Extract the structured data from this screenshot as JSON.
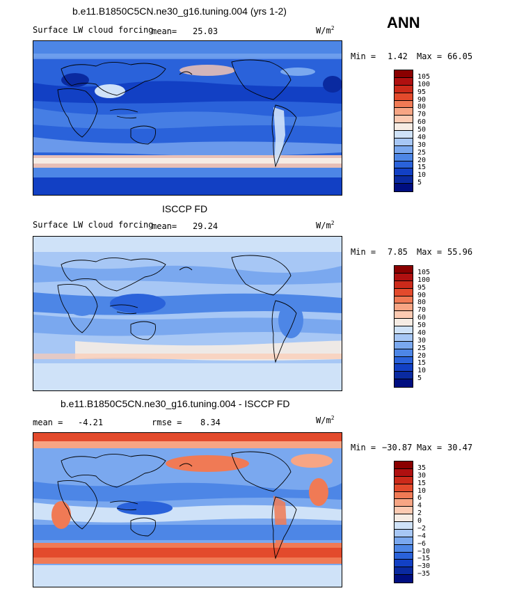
{
  "header": {
    "run_title": "b.e11.B1850C5CN.ne30_g16.tuning.004 (yrs 1-2)",
    "season": "ANN"
  },
  "panels": [
    {
      "title": "",
      "variable": "Surface LW cloud forcing",
      "stat1_label": "mean=",
      "stat1_value": "25.03",
      "units": "W/m",
      "units_exp": "2",
      "min_label": "Min =",
      "min_value": "1.42",
      "max_label": "Max =",
      "max_value": "66.05"
    },
    {
      "title": "ISCCP FD",
      "variable": "Surface LW cloud forcing",
      "stat1_label": "mean=",
      "stat1_value": "29.24",
      "units": "W/m",
      "units_exp": "2",
      "min_label": "Min =",
      "min_value": "7.85",
      "max_label": "Max =",
      "max_value": "55.96"
    },
    {
      "title": "b.e11.B1850C5CN.ne30_g16.tuning.004 - ISCCP FD",
      "variable": "",
      "stat1_label": "mean =",
      "stat1_value": "-4.21",
      "stat2_label": "rmse =",
      "stat2_value": "8.34",
      "units": "W/m",
      "units_exp": "2",
      "min_label": "Min =",
      "min_value": "−30.87",
      "max_label": "Max =",
      "max_value": "30.47"
    }
  ],
  "colorbar_abs": {
    "labels": [
      "105",
      "100",
      "95",
      "90",
      "80",
      "70",
      "60",
      "50",
      "40",
      "30",
      "25",
      "20",
      "15",
      "10",
      "5"
    ],
    "colors": [
      "#8a0000",
      "#b01010",
      "#cc2a1a",
      "#e34a2c",
      "#f07a55",
      "#f7a584",
      "#fccab2",
      "#f6ece4",
      "#cfe2f8",
      "#a7c7f5",
      "#7aa8ef",
      "#4d86e6",
      "#2a62da",
      "#1240c4",
      "#0a2aa0",
      "#000e80"
    ]
  },
  "colorbar_diff": {
    "labels": [
      "35",
      "30",
      "15",
      "10",
      "6",
      "4",
      "2",
      "0",
      "−2",
      "−4",
      "−6",
      "−10",
      "−15",
      "−30",
      "−35"
    ],
    "colors": [
      "#8a0000",
      "#b01010",
      "#cc2a1a",
      "#e34a2c",
      "#f07a55",
      "#f7a584",
      "#fccab2",
      "#f6ece4",
      "#cfe2f8",
      "#a7c7f5",
      "#7aa8ef",
      "#4d86e6",
      "#2a62da",
      "#1240c4",
      "#0a2aa0",
      "#000e80"
    ]
  }
}
